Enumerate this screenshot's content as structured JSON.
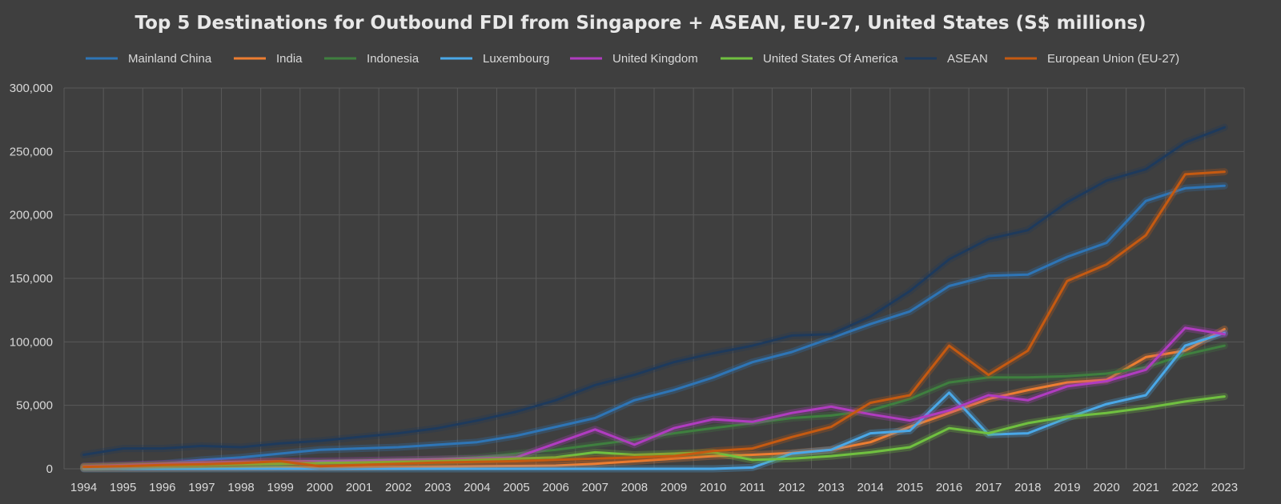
{
  "chart_data": {
    "type": "line",
    "title": "Top 5 Destinations for Outbound FDI from Singapore + ASEAN, EU-27, United States (S$ millions)",
    "xlabel": "",
    "ylabel": "",
    "ylim": [
      0,
      300000
    ],
    "yticks": [
      0,
      50000,
      100000,
      150000,
      200000,
      250000,
      300000
    ],
    "ytick_labels": [
      "0",
      "50,000",
      "100,000",
      "150,000",
      "200,000",
      "250,000",
      "300,000"
    ],
    "grid": true,
    "legend_position": "top",
    "categories": [
      "1994",
      "1995",
      "1996",
      "1997",
      "1998",
      "1999",
      "2000",
      "2001",
      "2002",
      "2003",
      "2004",
      "2005",
      "2006",
      "2007",
      "2008",
      "2009",
      "2010",
      "2011",
      "2012",
      "2013",
      "2014",
      "2015",
      "2016",
      "2017",
      "2018",
      "2019",
      "2020",
      "2021",
      "2022",
      "2023"
    ],
    "series": [
      {
        "name": "Mainland China",
        "color": "#2e75b6",
        "values": [
          1000,
          2000,
          4000,
          7000,
          9000,
          12000,
          15000,
          16000,
          17000,
          19000,
          21000,
          26000,
          33000,
          40000,
          54000,
          62000,
          72000,
          84000,
          92000,
          103000,
          114000,
          124000,
          144000,
          152000,
          153000,
          167000,
          178000,
          211000,
          221000,
          223000
        ]
      },
      {
        "name": "India",
        "color": "#ed7d31",
        "values": [
          300,
          400,
          500,
          600,
          800,
          1000,
          1000,
          1200,
          1500,
          1800,
          2000,
          2200,
          2500,
          4000,
          6000,
          8000,
          10000,
          11000,
          12500,
          15000,
          21000,
          33000,
          44000,
          55000,
          62000,
          68000,
          70000,
          88000,
          93000,
          110000
        ]
      },
      {
        "name": "Indonesia",
        "color": "#3f7f3f",
        "values": [
          2000,
          2500,
          3000,
          3500,
          4000,
          4500,
          5000,
          5500,
          6500,
          7500,
          9000,
          12000,
          15000,
          19000,
          23000,
          28000,
          32000,
          36000,
          40000,
          42000,
          46000,
          55000,
          68000,
          72000,
          72000,
          73000,
          75000,
          80000,
          90000,
          97000
        ]
      },
      {
        "name": "Luxembourg",
        "color": "#4aa8e8",
        "values": [
          0,
          0,
          0,
          0,
          0,
          0,
          0,
          0,
          0,
          0,
          0,
          0,
          0,
          0,
          0,
          0,
          0,
          1000,
          12000,
          15000,
          28000,
          30000,
          60000,
          27000,
          28000,
          40000,
          51000,
          58000,
          97000,
          107000
        ]
      },
      {
        "name": "United Kingdom",
        "color": "#b03cc0",
        "values": [
          2000,
          3000,
          4000,
          5000,
          5500,
          6000,
          6000,
          6500,
          7000,
          7500,
          8000,
          9000,
          20000,
          31000,
          19000,
          32000,
          39000,
          37000,
          44000,
          49000,
          43000,
          38000,
          46000,
          58000,
          54000,
          65000,
          69000,
          78000,
          111000,
          106000
        ]
      },
      {
        "name": "United States Of America",
        "color": "#70c040",
        "values": [
          1500,
          2000,
          2500,
          3000,
          3500,
          4000,
          4500,
          5000,
          5500,
          6000,
          7000,
          8000,
          9000,
          13000,
          11000,
          12000,
          13000,
          7000,
          8000,
          10000,
          13000,
          17000,
          32000,
          28000,
          36000,
          41000,
          44000,
          48000,
          53000,
          57000
        ]
      },
      {
        "name": "ASEAN",
        "color": "#1e3a5c",
        "values": [
          11000,
          16000,
          16000,
          18000,
          17000,
          20000,
          22000,
          25000,
          28000,
          32000,
          38000,
          45000,
          54000,
          66000,
          74000,
          84000,
          91000,
          97000,
          105000,
          106000,
          120000,
          140000,
          165000,
          181000,
          188000,
          210000,
          227000,
          236000,
          257000,
          269000
        ]
      },
      {
        "name": "European Union (EU-27)",
        "color": "#c55a11",
        "values": [
          1500,
          2000,
          3000,
          3500,
          4500,
          6000,
          2000,
          3000,
          4000,
          5000,
          5500,
          6000,
          7000,
          8000,
          9000,
          10000,
          14000,
          16000,
          25000,
          33000,
          52000,
          58000,
          97000,
          74000,
          93000,
          148000,
          161000,
          184000,
          232000,
          234000
        ]
      }
    ]
  }
}
